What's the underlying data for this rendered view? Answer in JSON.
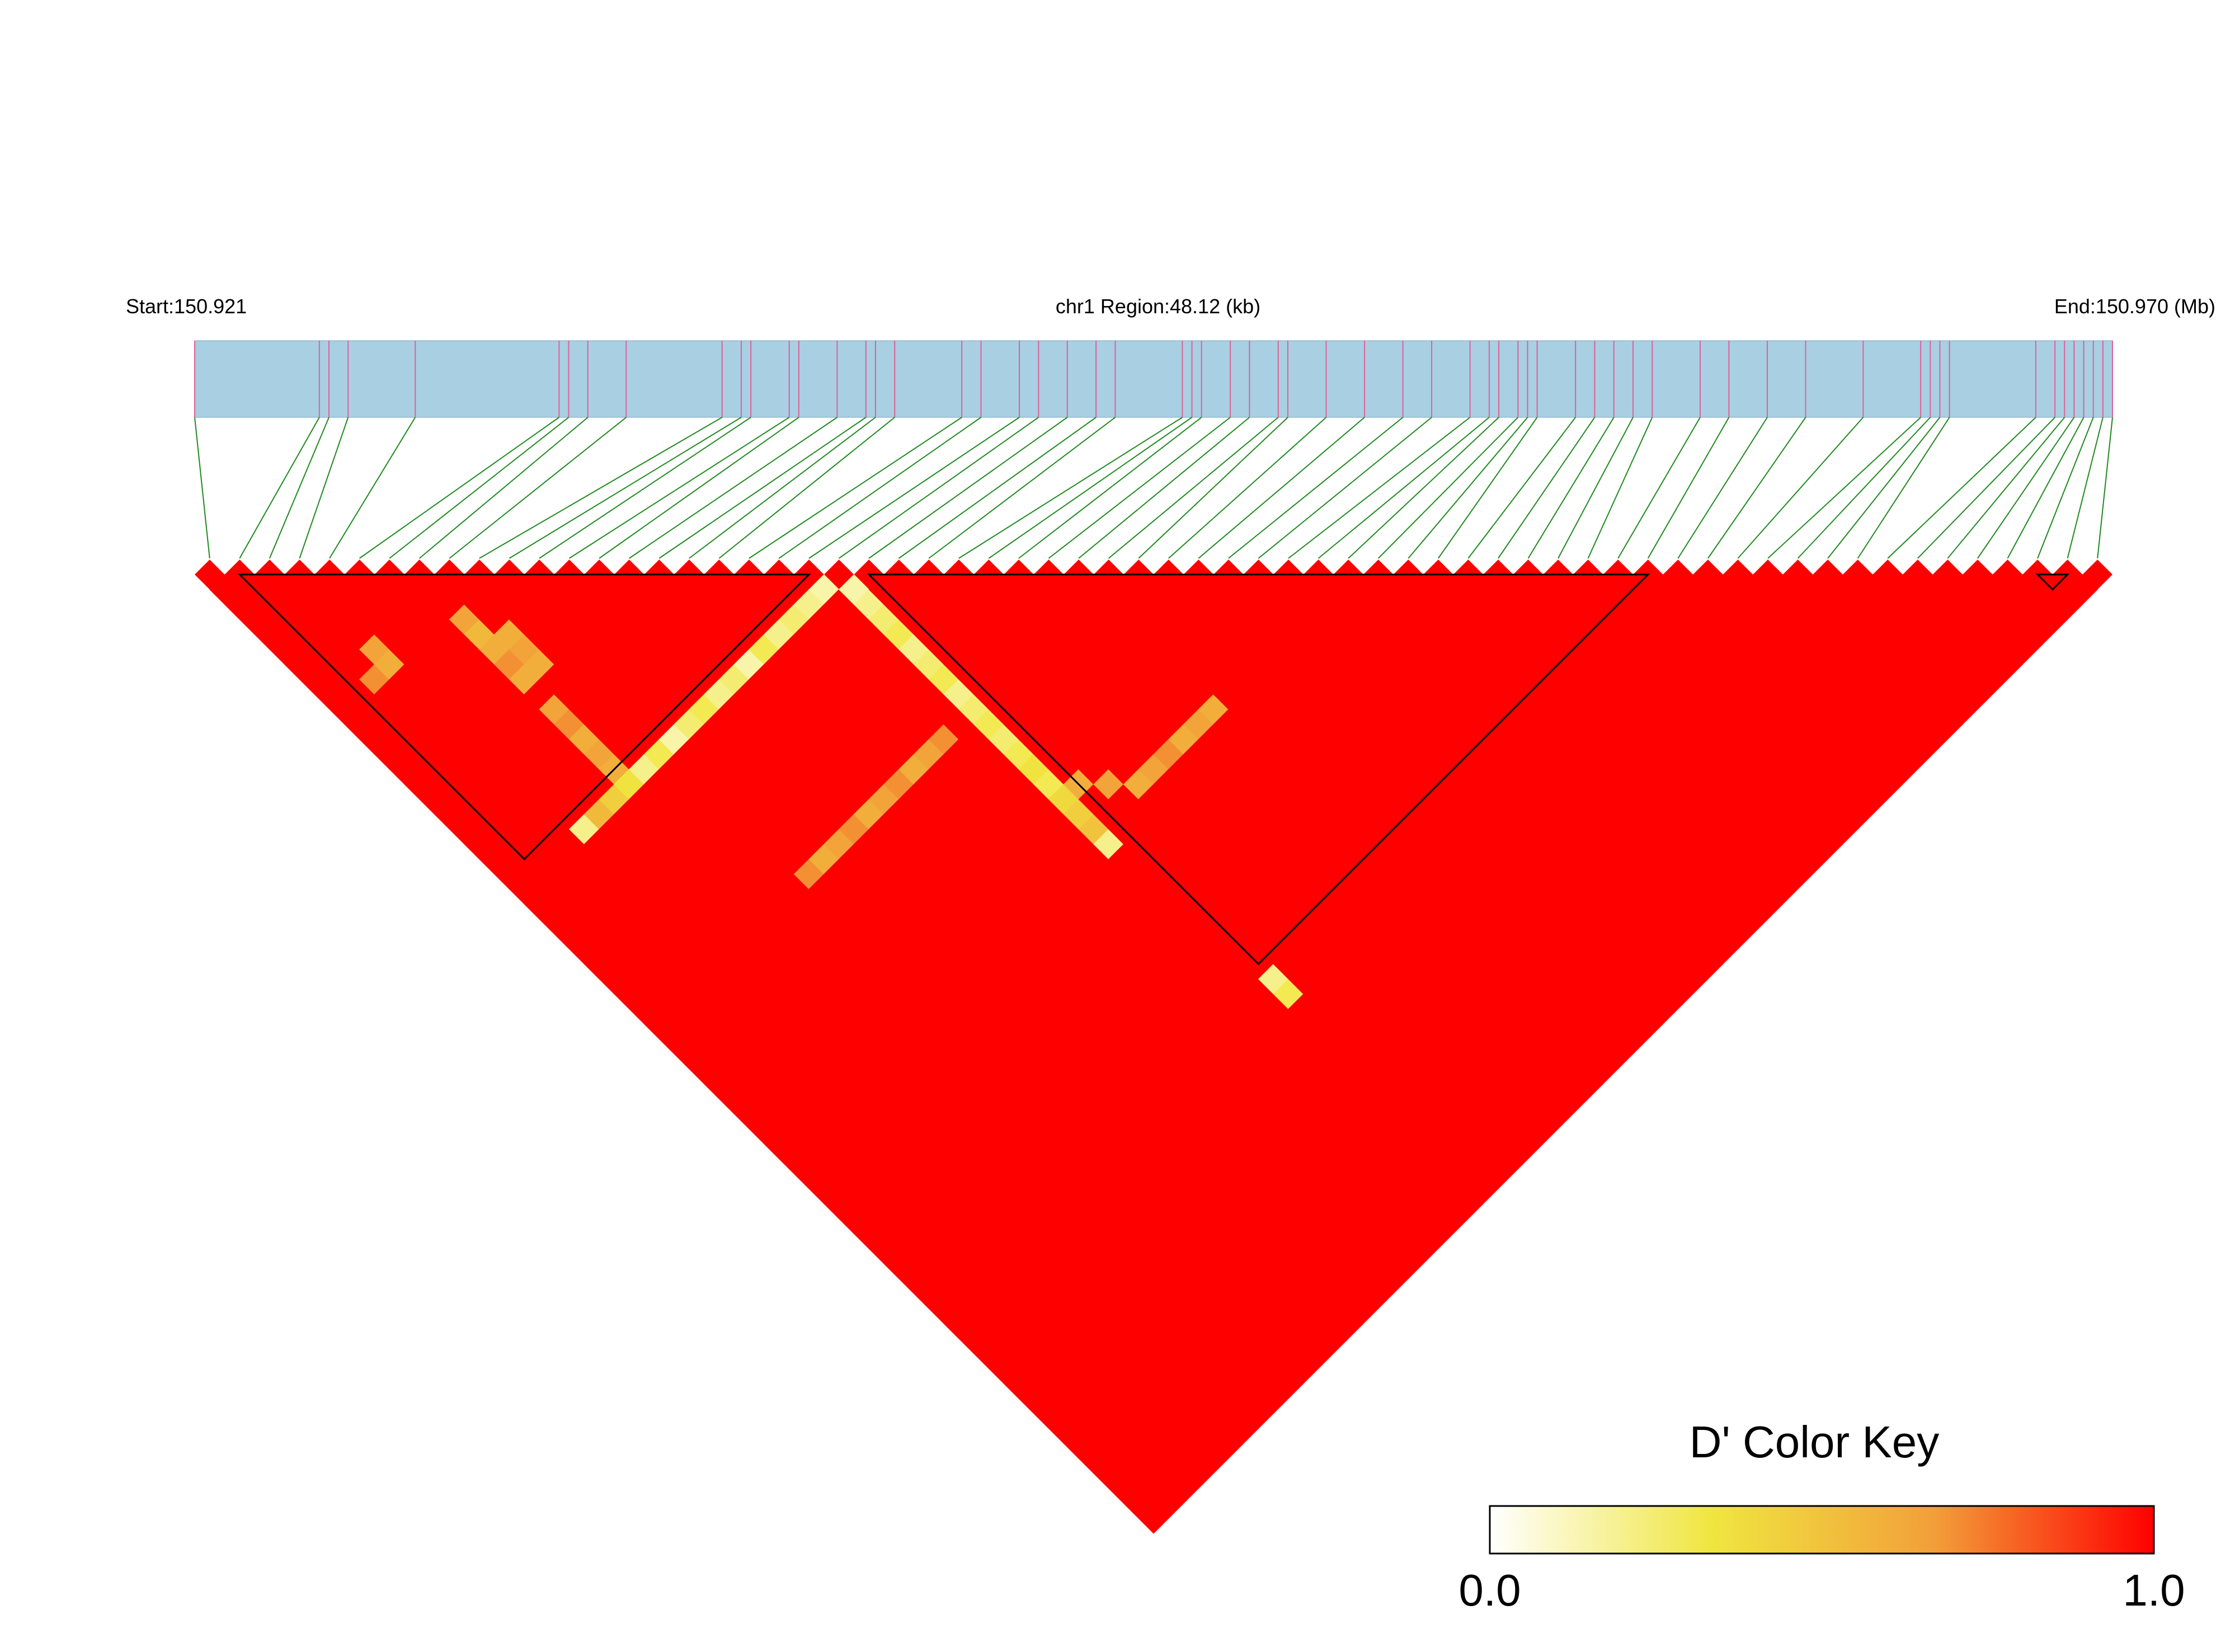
{
  "header": {
    "start_label": "Start:150.921",
    "region_label": "chr1 Region:48.12 (kb)",
    "end_label": "End:150.970 (Mb)"
  },
  "legend": {
    "title": "D' Color Key",
    "min_label": "0.0",
    "max_label": "1.0",
    "gradient_colors": [
      "#ffffff",
      "#f0e640",
      "#f2a03a",
      "#ff0000"
    ]
  },
  "colors": {
    "track_fill": "#a8cfe2",
    "snp_tick": "#e0609a",
    "connector": "#1f8a1f",
    "ld_high": "#ff0000",
    "block_outline": "#000000"
  },
  "chart_data": {
    "type": "heatmap",
    "title": "",
    "chromosome": "chr1",
    "region_start_mb": 150.921,
    "region_end_mb": 150.97,
    "region_length_kb": 48.12,
    "snp_count": 64,
    "snp_positions_relative": [
      0.0,
      0.065,
      0.07,
      0.08,
      0.115,
      0.19,
      0.195,
      0.205,
      0.225,
      0.275,
      0.285,
      0.29,
      0.31,
      0.315,
      0.335,
      0.35,
      0.355,
      0.365,
      0.4,
      0.41,
      0.43,
      0.44,
      0.455,
      0.47,
      0.48,
      0.515,
      0.52,
      0.525,
      0.54,
      0.55,
      0.565,
      0.57,
      0.59,
      0.61,
      0.63,
      0.645,
      0.665,
      0.675,
      0.68,
      0.69,
      0.695,
      0.7,
      0.72,
      0.73,
      0.74,
      0.75,
      0.76,
      0.785,
      0.8,
      0.82,
      0.84,
      0.87,
      0.9,
      0.905,
      0.91,
      0.915,
      0.96,
      0.97,
      0.975,
      0.98,
      0.985,
      0.99,
      0.995,
      1.0
    ],
    "default_dprime": 1.0,
    "ld_blocks": [
      [
        1,
        20
      ],
      [
        22,
        48
      ],
      [
        61,
        62
      ]
    ],
    "low_dprime_cells": [
      [
        20,
        21,
        0.15
      ],
      [
        19,
        21,
        0.2
      ],
      [
        18,
        21,
        0.25
      ],
      [
        17,
        21,
        0.2
      ],
      [
        16,
        21,
        0.3
      ],
      [
        15,
        21,
        0.15
      ],
      [
        14,
        21,
        0.25
      ],
      [
        13,
        21,
        0.2
      ],
      [
        12,
        21,
        0.3
      ],
      [
        11,
        21,
        0.25
      ],
      [
        10,
        21,
        0.15
      ],
      [
        9,
        21,
        0.3
      ],
      [
        8,
        21,
        0.2
      ],
      [
        7,
        21,
        0.35
      ],
      [
        6,
        21,
        0.45
      ],
      [
        5,
        21,
        0.55
      ],
      [
        4,
        21,
        0.2
      ],
      [
        21,
        22,
        0.15
      ],
      [
        21,
        23,
        0.2
      ],
      [
        21,
        24,
        0.25
      ],
      [
        21,
        25,
        0.3
      ],
      [
        21,
        26,
        0.2
      ],
      [
        21,
        27,
        0.25
      ],
      [
        21,
        28,
        0.3
      ],
      [
        21,
        29,
        0.2
      ],
      [
        21,
        30,
        0.25
      ],
      [
        21,
        31,
        0.3
      ],
      [
        21,
        32,
        0.25
      ],
      [
        21,
        33,
        0.3
      ],
      [
        21,
        34,
        0.35
      ],
      [
        21,
        35,
        0.3
      ],
      [
        21,
        36,
        0.4
      ],
      [
        21,
        37,
        0.45
      ],
      [
        21,
        38,
        0.5
      ],
      [
        21,
        39,
        0.2
      ],
      [
        22,
        49,
        0.2
      ],
      [
        22,
        50,
        0.3
      ],
      [
        7,
        20,
        0.6
      ],
      [
        7,
        19,
        0.65
      ],
      [
        7,
        18,
        0.6
      ],
      [
        7,
        17,
        0.7
      ],
      [
        7,
        16,
        0.65
      ],
      [
        7,
        14,
        0.6
      ],
      [
        7,
        13,
        0.7
      ],
      [
        7,
        12,
        0.6
      ],
      [
        7,
        11,
        0.55
      ],
      [
        7,
        10,
        0.65
      ],
      [
        8,
        14,
        0.6
      ],
      [
        8,
        13,
        0.65
      ],
      [
        8,
        12,
        0.6
      ],
      [
        3,
        9,
        0.6
      ],
      [
        3,
        8,
        0.65
      ],
      [
        2,
        9,
        0.7
      ],
      [
        10,
        30,
        0.7
      ],
      [
        11,
        30,
        0.6
      ],
      [
        12,
        30,
        0.65
      ],
      [
        13,
        30,
        0.7
      ],
      [
        14,
        30,
        0.6
      ],
      [
        15,
        30,
        0.65
      ],
      [
        16,
        30,
        0.7
      ],
      [
        17,
        30,
        0.6
      ],
      [
        18,
        30,
        0.65
      ],
      [
        19,
        30,
        0.7
      ],
      [
        22,
        36,
        0.6
      ],
      [
        23,
        37,
        0.65
      ],
      [
        24,
        38,
        0.6
      ],
      [
        25,
        38,
        0.65
      ],
      [
        26,
        38,
        0.7
      ],
      [
        27,
        38,
        0.6
      ],
      [
        28,
        38,
        0.65
      ],
      [
        29,
        38,
        0.6
      ]
    ]
  }
}
